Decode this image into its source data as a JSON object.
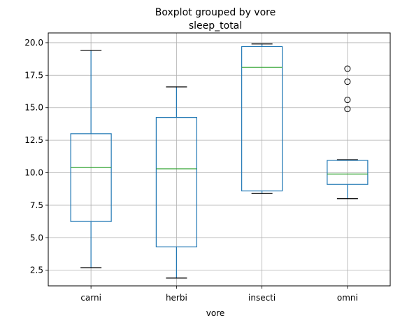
{
  "chart_data": {
    "type": "boxplot",
    "title": "Boxplot grouped by vore",
    "subtitle": "sleep_total",
    "xlabel": "vore",
    "ylabel": "",
    "ylim": [
      1.3,
      20.75
    ],
    "yticks": [
      2.5,
      5.0,
      7.5,
      10.0,
      12.5,
      15.0,
      17.5,
      20.0
    ],
    "ytick_labels": [
      "2.5",
      "5.0",
      "7.5",
      "10.0",
      "12.5",
      "15.0",
      "17.5",
      "20.0"
    ],
    "grid": true,
    "categories": [
      "carni",
      "herbi",
      "insecti",
      "omni"
    ],
    "boxes": [
      {
        "category": "carni",
        "whisker_low": 2.7,
        "q1": 6.25,
        "median": 10.4,
        "q3": 13.0,
        "whisker_high": 19.4,
        "outliers": []
      },
      {
        "category": "herbi",
        "whisker_low": 1.9,
        "q1": 4.3,
        "median": 10.3,
        "q3": 14.25,
        "whisker_high": 16.6,
        "outliers": []
      },
      {
        "category": "insecti",
        "whisker_low": 8.4,
        "q1": 8.6,
        "median": 18.1,
        "q3": 19.7,
        "whisker_high": 19.9,
        "outliers": []
      },
      {
        "category": "omni",
        "whisker_low": 8.0,
        "q1": 9.1,
        "median": 9.9,
        "q3": 10.95,
        "whisker_high": 11.0,
        "outliers": [
          14.9,
          15.6,
          17.0,
          18.0
        ]
      }
    ],
    "colors": {
      "box": "#1f77b4",
      "median": "#2ca02c",
      "whisker_cap": "#000000",
      "outlier": "#000000",
      "grid": "#b0b0b0"
    }
  }
}
